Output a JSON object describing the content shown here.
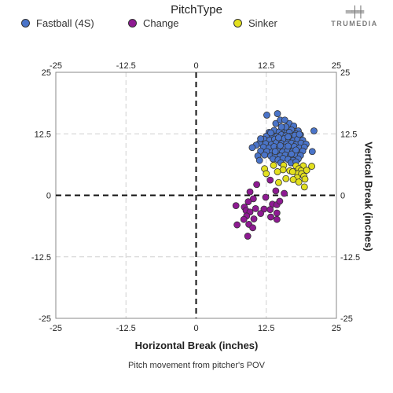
{
  "chart_data": {
    "type": "scatter",
    "legend_title": "PitchType",
    "xlabel": "Horizontal Break (inches)",
    "ylabel": "Vertical Break (inches)",
    "caption": "Pitch movement from pitcher's POV",
    "brand": "TRUMEDIA",
    "brand_mark": "═╪╪",
    "xlim": [
      -25,
      25
    ],
    "ylim": [
      -25,
      25
    ],
    "ticks": [
      -25,
      -12.5,
      0,
      12.5,
      25
    ],
    "tick_labels": [
      "-25",
      "-12.5",
      "0",
      "12.5",
      "25"
    ],
    "grid": true,
    "legend_position": "top-left",
    "series": [
      {
        "name": "Fastball (4S)",
        "color": "#4a74c9",
        "points": [
          [
            12.6,
            16.3
          ],
          [
            14.2,
            14.6
          ],
          [
            15.0,
            15.3
          ],
          [
            16.6,
            14.6
          ],
          [
            17.4,
            14.1
          ],
          [
            15.8,
            15.3
          ],
          [
            13.9,
            13.2
          ],
          [
            15.5,
            13.4
          ],
          [
            16.2,
            13.0
          ],
          [
            17.0,
            13.3
          ],
          [
            18.2,
            13.1
          ],
          [
            14.8,
            12.9
          ],
          [
            16.6,
            12.8
          ],
          [
            17.8,
            12.5
          ],
          [
            13.0,
            12.8
          ],
          [
            12.5,
            12.0
          ],
          [
            13.6,
            12.2
          ],
          [
            14.4,
            12.0
          ],
          [
            15.2,
            12.3
          ],
          [
            16.0,
            12.1
          ],
          [
            16.8,
            12.0
          ],
          [
            17.6,
            12.2
          ],
          [
            18.6,
            12.3
          ],
          [
            12.1,
            11.4
          ],
          [
            13.1,
            11.2
          ],
          [
            14.0,
            11.4
          ],
          [
            14.9,
            11.2
          ],
          [
            15.7,
            11.5
          ],
          [
            16.5,
            11.3
          ],
          [
            17.3,
            11.1
          ],
          [
            18.1,
            11.4
          ],
          [
            19.0,
            11.2
          ],
          [
            11.3,
            10.6
          ],
          [
            12.4,
            10.5
          ],
          [
            13.4,
            10.3
          ],
          [
            14.3,
            10.7
          ],
          [
            15.2,
            10.5
          ],
          [
            16.1,
            10.4
          ],
          [
            17.0,
            10.6
          ],
          [
            17.8,
            10.3
          ],
          [
            18.7,
            10.6
          ],
          [
            19.6,
            10.4
          ],
          [
            12.0,
            9.8
          ],
          [
            13.0,
            9.6
          ],
          [
            13.9,
            9.9
          ],
          [
            14.8,
            9.6
          ],
          [
            15.7,
            9.8
          ],
          [
            16.6,
            9.6
          ],
          [
            17.5,
            9.9
          ],
          [
            18.4,
            9.6
          ],
          [
            19.3,
            9.8
          ],
          [
            11.5,
            9.0
          ],
          [
            12.6,
            8.9
          ],
          [
            13.6,
            8.8
          ],
          [
            14.5,
            9.0
          ],
          [
            15.4,
            8.8
          ],
          [
            16.3,
            9.1
          ],
          [
            17.2,
            8.9
          ],
          [
            18.1,
            8.7
          ],
          [
            19.0,
            9.0
          ],
          [
            12.2,
            8.2
          ],
          [
            13.3,
            8.0
          ],
          [
            14.1,
            8.3
          ],
          [
            15.0,
            8.0
          ],
          [
            15.9,
            8.2
          ],
          [
            16.8,
            8.0
          ],
          [
            17.7,
            8.3
          ],
          [
            18.6,
            8.1
          ],
          [
            13.7,
            7.4
          ],
          [
            14.6,
            7.2
          ],
          [
            15.5,
            7.5
          ],
          [
            16.4,
            7.3
          ],
          [
            17.3,
            7.1
          ],
          [
            18.2,
            7.4
          ],
          [
            15.1,
            6.6
          ],
          [
            16.9,
            6.6
          ],
          [
            17.8,
            6.8
          ],
          [
            10.7,
            10.2
          ],
          [
            10.0,
            9.7
          ],
          [
            11.5,
            11.5
          ],
          [
            11.0,
            8.0
          ],
          [
            11.3,
            7.1
          ],
          [
            21.0,
            13.1
          ],
          [
            20.7,
            8.9
          ],
          [
            14.5,
            16.6
          ],
          [
            16.0,
            13.9
          ],
          [
            15.2,
            13.9
          ],
          [
            16.4,
            11.9
          ],
          [
            14.7,
            11.7
          ],
          [
            16.4,
            10.0
          ],
          [
            15.0,
            10.1
          ],
          [
            17.0,
            8.4
          ],
          [
            14.1,
            8.9
          ],
          [
            18.4,
            12.4
          ],
          [
            13.3,
            12.7
          ],
          [
            17.8,
            9.2
          ]
        ]
      },
      {
        "name": "Change",
        "color": "#8e1a92",
        "points": [
          [
            13.2,
            3.1
          ],
          [
            10.8,
            2.2
          ],
          [
            9.6,
            0.7
          ],
          [
            14.2,
            0.9
          ],
          [
            15.7,
            0.4
          ],
          [
            12.4,
            -0.4
          ],
          [
            10.2,
            -0.7
          ],
          [
            9.3,
            -1.3
          ],
          [
            13.6,
            -1.8
          ],
          [
            14.4,
            -1.9
          ],
          [
            14.9,
            -1.2
          ],
          [
            7.1,
            -2.1
          ],
          [
            8.6,
            -2.4
          ],
          [
            10.6,
            -2.7
          ],
          [
            12.1,
            -2.8
          ],
          [
            13.2,
            -2.9
          ],
          [
            8.9,
            -3.1
          ],
          [
            9.6,
            -3.4
          ],
          [
            11.5,
            -3.7
          ],
          [
            14.4,
            -3.6
          ],
          [
            9.0,
            -4.2
          ],
          [
            10.3,
            -4.8
          ],
          [
            13.3,
            -4.4
          ],
          [
            8.5,
            -4.9
          ],
          [
            14.4,
            -4.9
          ],
          [
            9.4,
            -5.9
          ],
          [
            10.1,
            -6.6
          ],
          [
            7.3,
            -6.0
          ],
          [
            9.2,
            -8.3
          ]
        ]
      },
      {
        "name": "Sinker",
        "color": "#e3e01e",
        "points": [
          [
            13.8,
            6.1
          ],
          [
            15.6,
            6.1
          ],
          [
            17.8,
            6.0
          ],
          [
            19.1,
            6.0
          ],
          [
            18.3,
            5.4
          ],
          [
            12.2,
            5.4
          ],
          [
            18.7,
            5.0
          ],
          [
            15.5,
            5.2
          ],
          [
            16.7,
            5.0
          ],
          [
            19.7,
            5.1
          ],
          [
            18.1,
            4.4
          ],
          [
            12.5,
            4.4
          ],
          [
            14.5,
            4.8
          ],
          [
            17.2,
            4.8
          ],
          [
            18.8,
            4.4
          ],
          [
            19.2,
            3.9
          ],
          [
            18.0,
            3.6
          ],
          [
            17.3,
            3.2
          ],
          [
            19.4,
            3.3
          ],
          [
            16.0,
            3.4
          ],
          [
            14.7,
            2.6
          ],
          [
            18.3,
            2.7
          ],
          [
            19.3,
            1.7
          ],
          [
            20.6,
            5.9
          ]
        ]
      }
    ]
  }
}
